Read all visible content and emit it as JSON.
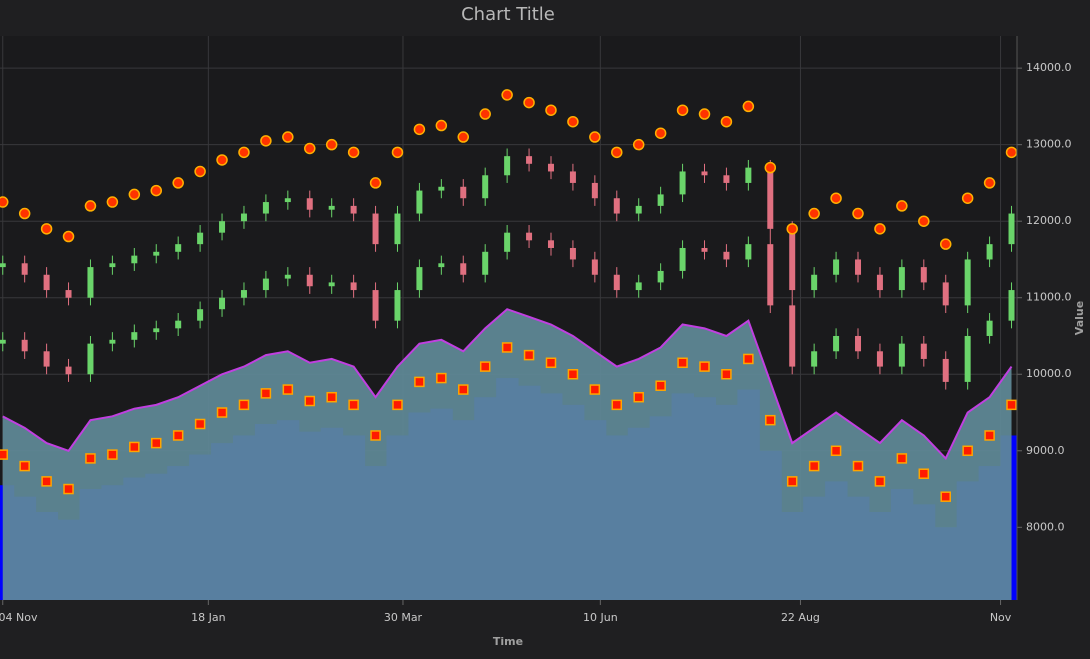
{
  "chart_data": {
    "type": "combination",
    "title": "Chart Title",
    "x_label": "Time",
    "y_label": "Value",
    "grid": true,
    "x": [
      0,
      8,
      16,
      24,
      32,
      40,
      48,
      56,
      64,
      72,
      80,
      88,
      96,
      104,
      112,
      120,
      128,
      136,
      144,
      152,
      160,
      168,
      176,
      184,
      192,
      200,
      208,
      216,
      224,
      232,
      240,
      248,
      256,
      264,
      272,
      280,
      288,
      296,
      304,
      312,
      320,
      328,
      336,
      344,
      352,
      360,
      368
    ],
    "xlim": [
      -1,
      370
    ],
    "xticks": [
      {
        "value": 0,
        "label": "04 Nov"
      },
      {
        "value": 75,
        "label": "18 Jan"
      },
      {
        "value": 146,
        "label": "30 Mar"
      },
      {
        "value": 218,
        "label": "10 Jun"
      },
      {
        "value": 291,
        "label": "22 Aug"
      },
      {
        "value": 364,
        "label": "Nov"
      }
    ],
    "ylim": [
      7050,
      14420
    ],
    "yticks": [
      {
        "value": 8000,
        "label": "8000.0"
      },
      {
        "value": 9000,
        "label": "9000.0"
      },
      {
        "value": 10000,
        "label": "10000.0"
      },
      {
        "value": 11000,
        "label": "11000.0"
      },
      {
        "value": 12000,
        "label": "12000.0"
      },
      {
        "value": 13000,
        "label": "13000.0"
      },
      {
        "value": 14000,
        "label": "14000.0"
      }
    ],
    "series": [
      {
        "type": "column",
        "color": "#0000ff",
        "values": [
          8550,
          8400,
          8200,
          8100,
          8500,
          8550,
          8650,
          8700,
          8800,
          8950,
          9100,
          9200,
          9350,
          9400,
          9250,
          9300,
          9200,
          8800,
          9200,
          9500,
          9550,
          9400,
          9700,
          9950,
          9850,
          9750,
          9600,
          9400,
          9200,
          9300,
          9450,
          9750,
          9700,
          9600,
          9800,
          9000,
          8200,
          8400,
          8600,
          8400,
          8200,
          8500,
          8300,
          8000,
          8600,
          8800,
          9200
        ]
      },
      {
        "type": "area",
        "color": "#5f8a98",
        "line_color": "#c040e0",
        "values": [
          9450,
          9300,
          9100,
          9000,
          9400,
          9450,
          9550,
          9600,
          9700,
          9850,
          10000,
          10100,
          10250,
          10300,
          10150,
          10200,
          10100,
          9700,
          10100,
          10400,
          10450,
          10300,
          10600,
          10850,
          10750,
          10650,
          10500,
          10300,
          10100,
          10200,
          10350,
          10650,
          10600,
          10500,
          10700,
          9900,
          9100,
          9300,
          9500,
          9300,
          9100,
          9400,
          9200,
          8900,
          9500,
          9700,
          10100
        ]
      },
      {
        "type": "scatter",
        "marker": "square",
        "color": "#ff1a00",
        "stroke": "#ffa500",
        "values": [
          8950,
          8800,
          8600,
          8500,
          8900,
          8950,
          9050,
          9100,
          9200,
          9350,
          9500,
          9600,
          9750,
          9800,
          9650,
          9700,
          9600,
          9200,
          9600,
          9900,
          9950,
          9800,
          10100,
          10350,
          10250,
          10150,
          10000,
          9800,
          9600,
          9700,
          9850,
          10150,
          10100,
          10000,
          10200,
          9400,
          8600,
          8800,
          9000,
          8800,
          8600,
          8900,
          8700,
          8400,
          9000,
          9200,
          9600
        ]
      },
      {
        "type": "candlestick",
        "up_color": "#6ad46a",
        "down_color": "#e07080",
        "open": [
          10400,
          10450,
          10300,
          10100,
          10000,
          10400,
          10450,
          10550,
          10600,
          10700,
          10850,
          11000,
          11100,
          11250,
          11300,
          11150,
          11200,
          11100,
          10700,
          11100,
          11400,
          11450,
          11300,
          11600,
          11850,
          11750,
          11650,
          11500,
          11300,
          11100,
          11200,
          11350,
          11650,
          11600,
          11500,
          11700,
          10900,
          10100,
          10300,
          10500,
          10300,
          10100,
          10400,
          10200,
          9900,
          10500,
          10700
        ],
        "high": [
          10550,
          10550,
          10400,
          10200,
          10500,
          10550,
          10650,
          10700,
          10800,
          10950,
          11100,
          11200,
          11350,
          11400,
          11400,
          11300,
          11300,
          11200,
          11200,
          11500,
          11550,
          11550,
          11700,
          11950,
          11950,
          11850,
          11750,
          11600,
          11400,
          11300,
          11450,
          11750,
          11750,
          11700,
          11800,
          11800,
          11000,
          10400,
          10600,
          10600,
          10400,
          10500,
          10500,
          10300,
          10600,
          10800,
          11200
        ],
        "low": [
          10300,
          10200,
          10000,
          9900,
          9900,
          10300,
          10350,
          10450,
          10500,
          10600,
          10750,
          10900,
          11000,
          11150,
          11050,
          11050,
          11000,
          10600,
          10600,
          11000,
          11300,
          11200,
          11200,
          11500,
          11650,
          11550,
          11400,
          11200,
          11000,
          11000,
          11100,
          11250,
          11500,
          11400,
          11400,
          10800,
          10000,
          10000,
          10200,
          10200,
          10000,
          10000,
          10100,
          9800,
          9800,
          10400,
          10600
        ],
        "close": [
          10450,
          10300,
          10100,
          10000,
          10400,
          10450,
          10550,
          10600,
          10700,
          10850,
          11000,
          11100,
          11250,
          11300,
          11150,
          11200,
          11100,
          10700,
          11100,
          11400,
          11450,
          11300,
          11600,
          11850,
          11750,
          11650,
          11500,
          11300,
          11100,
          11200,
          11350,
          11650,
          11600,
          11500,
          11700,
          10900,
          10100,
          10300,
          10500,
          10300,
          10100,
          10400,
          10200,
          9900,
          10500,
          10700,
          11100
        ]
      },
      {
        "type": "candlestick",
        "up_color": "#6ad46a",
        "down_color": "#e07080",
        "open": [
          11400,
          11450,
          11300,
          11100,
          11000,
          11400,
          11450,
          11550,
          11600,
          11700,
          11850,
          12000,
          12100,
          12250,
          12300,
          12150,
          12200,
          12100,
          11700,
          12100,
          12400,
          12450,
          12300,
          12600,
          12850,
          12750,
          12650,
          12500,
          12300,
          12100,
          12200,
          12350,
          12650,
          12600,
          12500,
          12700,
          11900,
          11100,
          11300,
          11500,
          11300,
          11100,
          11400,
          11200,
          10900,
          11500,
          11700
        ],
        "high": [
          11550,
          11550,
          11400,
          11200,
          11500,
          11550,
          11650,
          11700,
          11800,
          11950,
          12100,
          12200,
          12350,
          12400,
          12400,
          12300,
          12300,
          12200,
          12200,
          12500,
          12550,
          12550,
          12700,
          12950,
          12950,
          12850,
          12750,
          12600,
          12400,
          12300,
          12450,
          12750,
          12750,
          12700,
          12800,
          12800,
          12000,
          11400,
          11600,
          11600,
          11400,
          11500,
          11500,
          11300,
          11600,
          11800,
          12200
        ],
        "low": [
          11300,
          11200,
          11000,
          10900,
          10900,
          11300,
          11350,
          11450,
          11500,
          11600,
          11750,
          11900,
          12000,
          12150,
          12050,
          12050,
          12000,
          11600,
          11600,
          12000,
          12300,
          12200,
          12200,
          12500,
          12650,
          12550,
          12400,
          12200,
          12000,
          12000,
          12100,
          12250,
          12500,
          12400,
          12400,
          11800,
          11000,
          11000,
          11200,
          11200,
          11000,
          11000,
          11100,
          10800,
          10800,
          11400,
          11600
        ],
        "close": [
          11450,
          11300,
          11100,
          11000,
          11400,
          11450,
          11550,
          11600,
          11700,
          11850,
          12000,
          12100,
          12250,
          12300,
          12150,
          12200,
          12100,
          11700,
          12100,
          12400,
          12450,
          12300,
          12600,
          12850,
          12750,
          12650,
          12500,
          12300,
          12100,
          12200,
          12350,
          12650,
          12600,
          12500,
          12700,
          11900,
          11100,
          11300,
          11500,
          11300,
          11100,
          11400,
          11200,
          10900,
          11500,
          11700,
          12100
        ]
      },
      {
        "type": "scatter",
        "marker": "circle",
        "color": "#ff3300",
        "stroke": "#ffb000",
        "values": [
          12250,
          12100,
          11900,
          11800,
          12200,
          12250,
          12350,
          12400,
          12500,
          12650,
          12800,
          12900,
          13050,
          13100,
          12950,
          13000,
          12900,
          12500,
          12900,
          13200,
          13250,
          13100,
          13400,
          13650,
          13550,
          13450,
          13300,
          13100,
          12900,
          13000,
          13150,
          13450,
          13400,
          13300,
          13500,
          12700,
          11900,
          12100,
          12300,
          12100,
          11900,
          12200,
          12000,
          11700,
          12300,
          12500,
          12900
        ]
      }
    ]
  }
}
